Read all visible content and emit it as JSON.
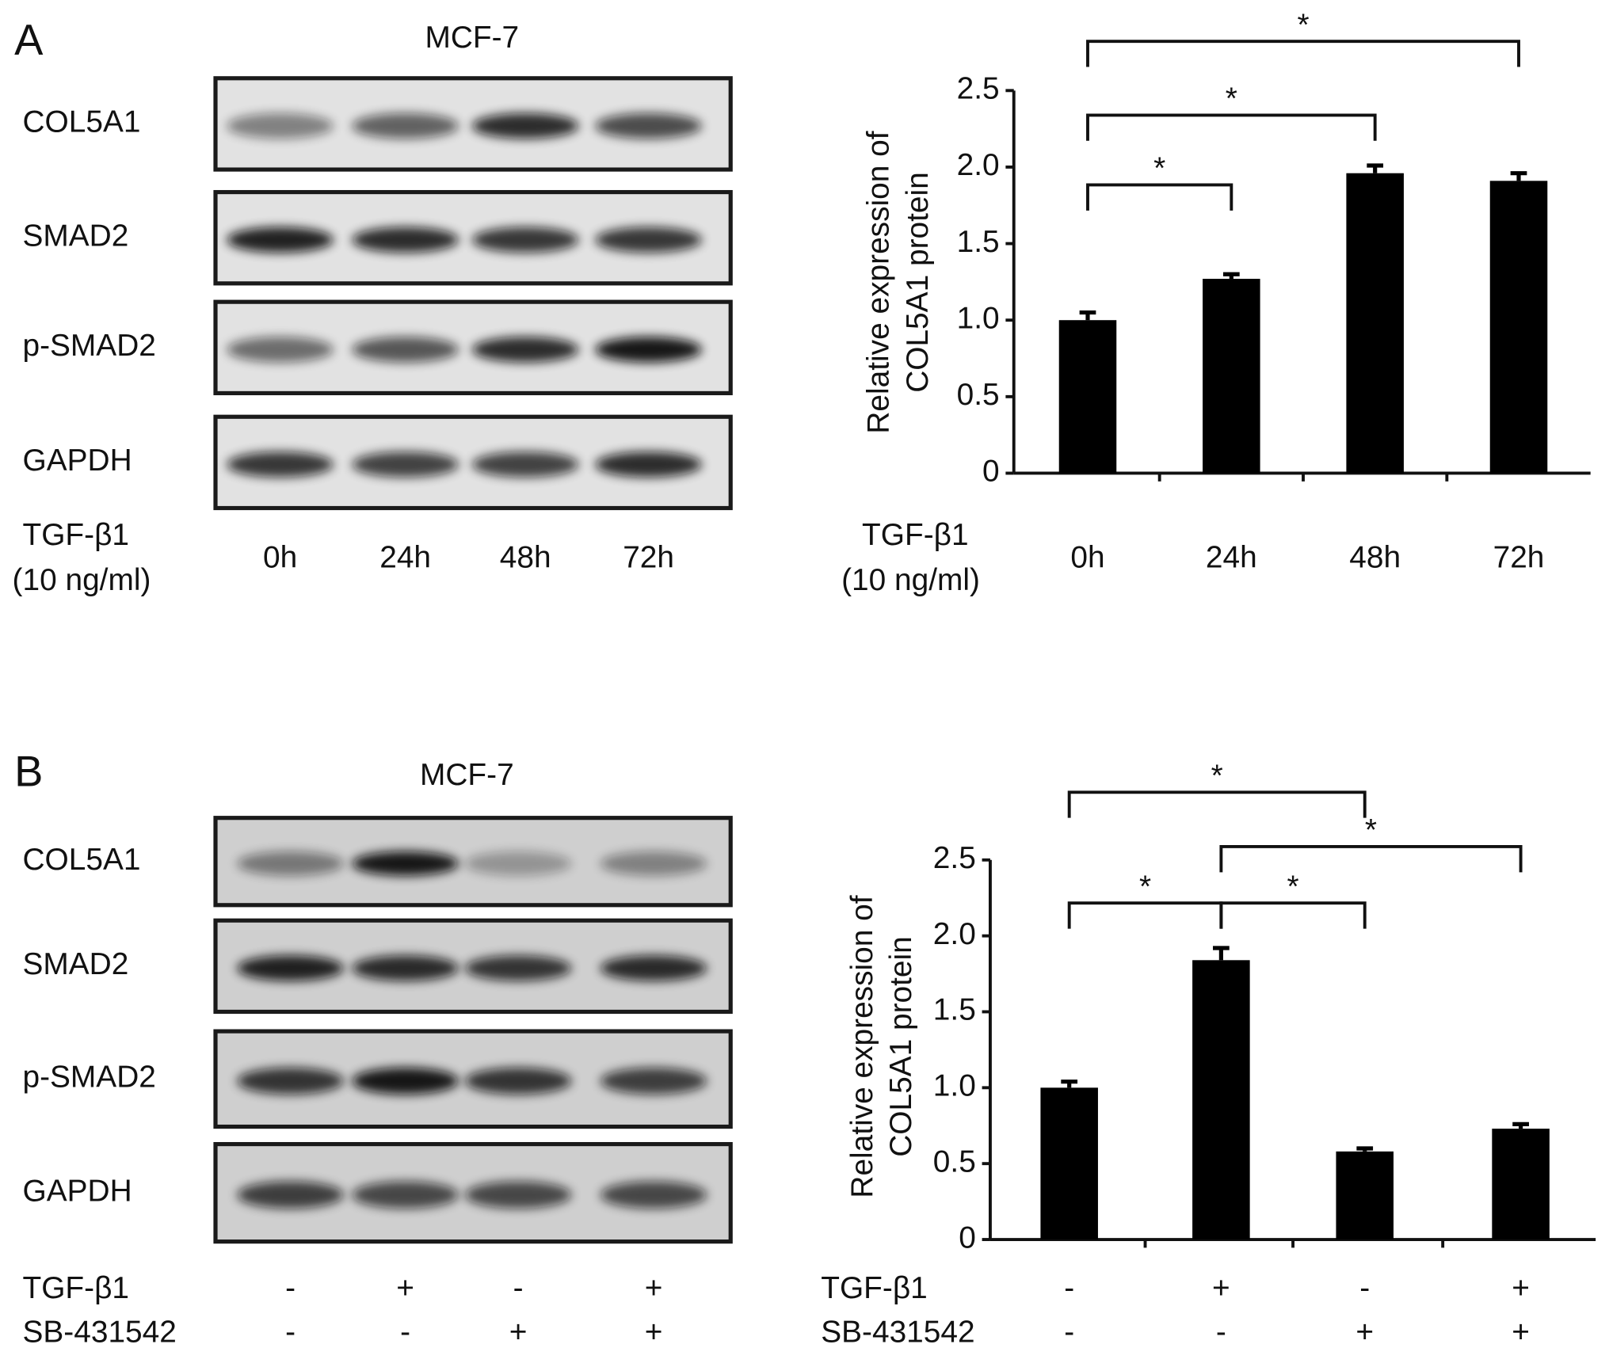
{
  "blots": [
    {
      "panel": "A",
      "title": "MCF-7",
      "rows": [
        "COL5A1",
        "SMAD2",
        "p-SMAD2",
        "GAPDH"
      ],
      "conditions": [
        {
          "name": "TGF-β1",
          "note": "(10 ng/ml)",
          "labels": [
            "0h",
            "24h",
            "48h",
            "72h"
          ]
        }
      ]
    },
    {
      "panel": "B",
      "title": "MCF-7",
      "rows": [
        "COL5A1",
        "SMAD2",
        "p-SMAD2",
        "GAPDH"
      ],
      "conditions": [
        {
          "name": "TGF-β1",
          "labels": [
            "-",
            "+",
            "-",
            "+"
          ]
        },
        {
          "name": "SB-431542",
          "labels": [
            "-",
            "-",
            "+",
            "+"
          ]
        }
      ]
    }
  ],
  "chart_data": [
    {
      "type": "bar",
      "ylabel": [
        "Relative expression of",
        "COL5A1 protein"
      ],
      "conditions": [
        {
          "name": "TGF-β1",
          "note": "(10 ng/ml)",
          "labels": [
            "0h",
            "24h",
            "48h",
            "72h"
          ]
        }
      ],
      "values": [
        1.0,
        1.27,
        1.96,
        1.91
      ],
      "errors": [
        0.05,
        0.03,
        0.05,
        0.05
      ],
      "color": "#000000",
      "ylim": [
        0,
        2.5
      ],
      "yticks": [
        0,
        0.5,
        {
          "value": 1,
          "label": "1.0"
        },
        1.5,
        {
          "value": 2,
          "label": "2.0"
        },
        2.5
      ],
      "annotations": [
        "*",
        "*",
        "*"
      ]
    },
    {
      "type": "bar",
      "ylabel": [
        "Relative expression of",
        "COL5A1 protein"
      ],
      "conditions": [
        {
          "name": "TGF-β1",
          "labels": [
            "-",
            "+",
            "-",
            "+"
          ]
        },
        {
          "name": "SB-431542",
          "labels": [
            "-",
            "-",
            "+",
            "+"
          ]
        }
      ],
      "values": [
        1.0,
        1.84,
        0.58,
        0.73
      ],
      "errors": [
        0.04,
        0.08,
        0.02,
        0.03
      ],
      "color": "#000000",
      "ylim": [
        0,
        2.5
      ],
      "yticks": [
        0,
        0.5,
        {
          "value": 1,
          "label": "1.0"
        },
        1.5,
        {
          "value": 2,
          "label": "2.0"
        },
        2.5
      ],
      "annotations": [
        "*",
        "*",
        "*",
        "*"
      ]
    }
  ]
}
